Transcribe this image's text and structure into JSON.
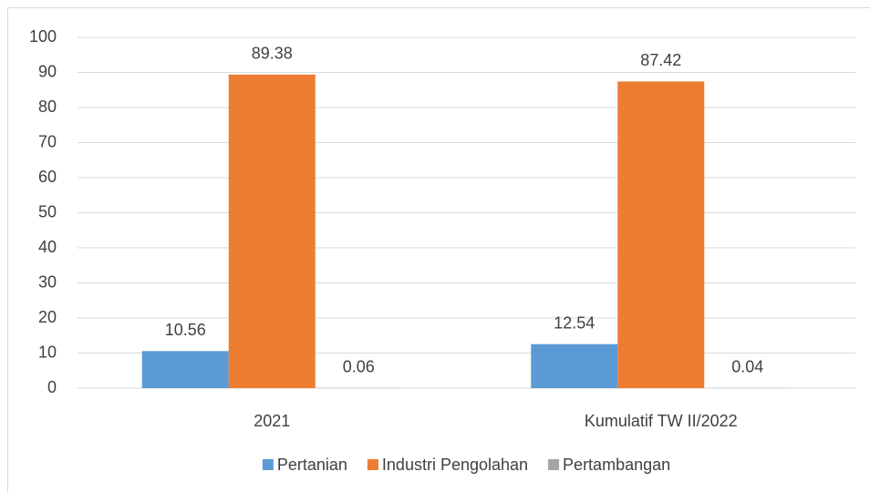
{
  "chart_data": {
    "type": "bar",
    "categories": [
      "2021",
      "Kumulatif TW II/2022"
    ],
    "series": [
      {
        "name": "Pertanian",
        "color": "#5b9bd5",
        "values": [
          10.56,
          12.54
        ]
      },
      {
        "name": "Industri Pengolahan",
        "color": "#ed7d31",
        "values": [
          89.38,
          87.42
        ]
      },
      {
        "name": "Pertambangan",
        "color": "#a5a5a5",
        "values": [
          0.06,
          0.04
        ]
      }
    ],
    "ylim": [
      0,
      100
    ],
    "yticks": [
      0,
      10,
      20,
      30,
      40,
      50,
      60,
      70,
      80,
      90,
      100
    ],
    "grid": true,
    "legend": "bottom"
  }
}
